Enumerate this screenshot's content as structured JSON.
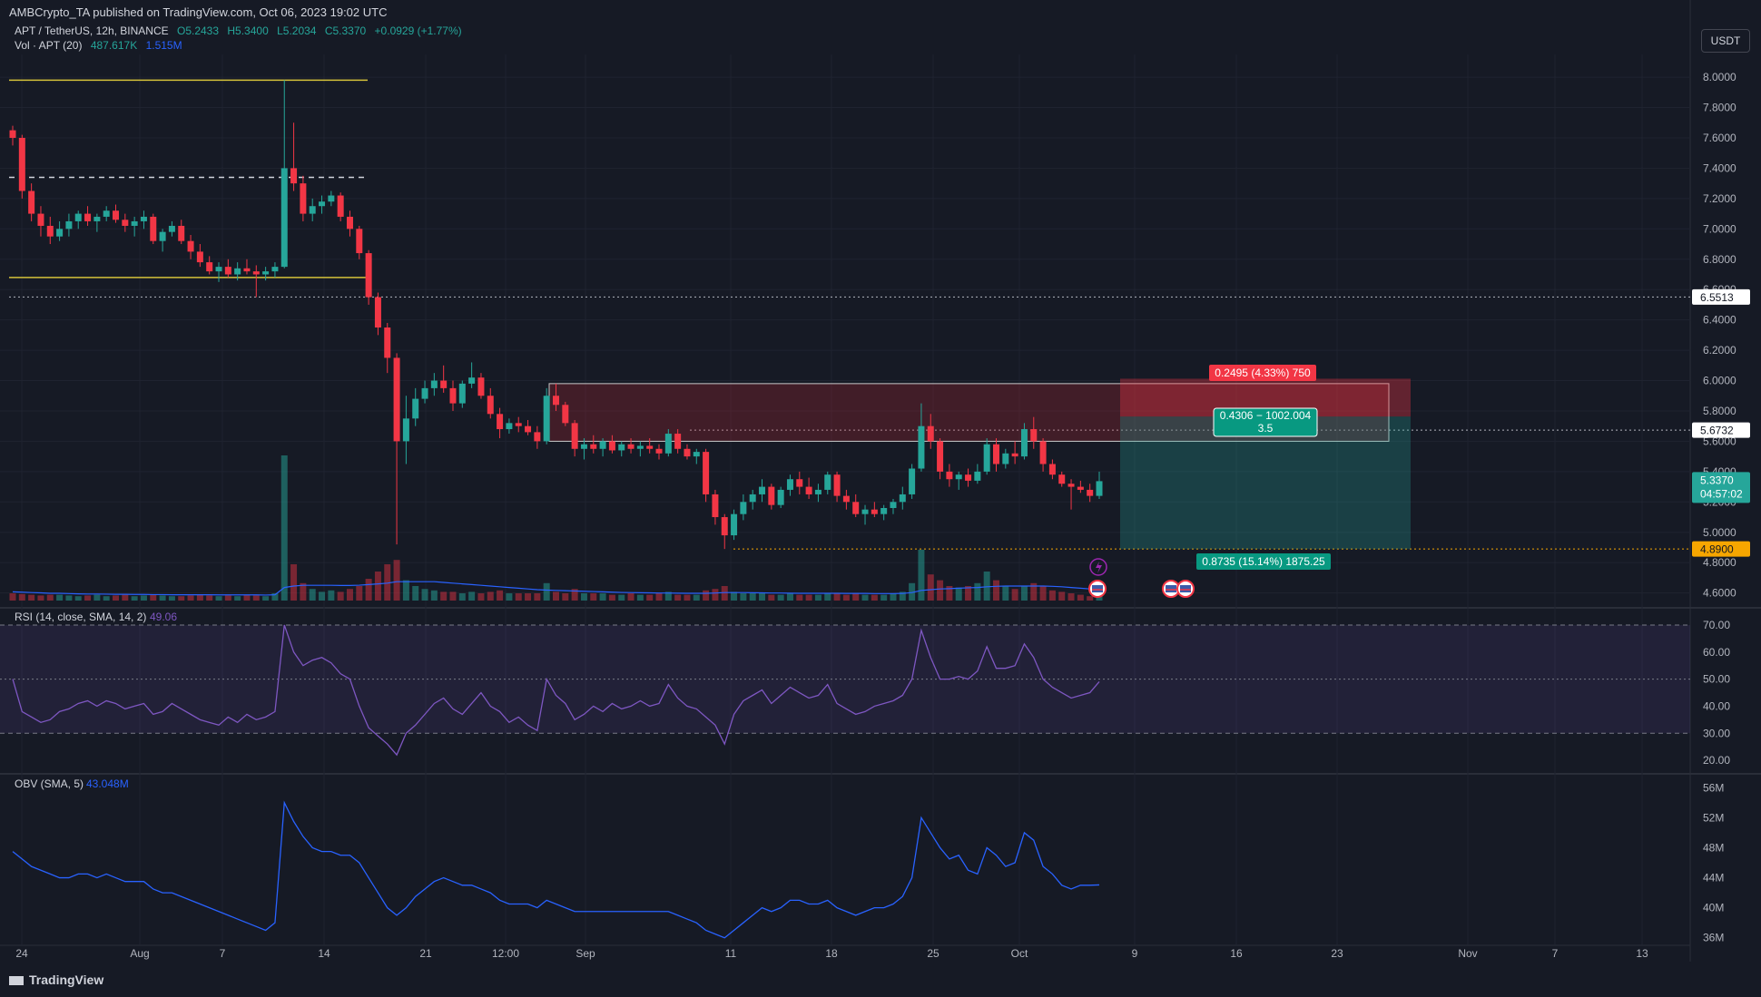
{
  "header": {
    "publisher": "AMBCrypto_TA published on TradingView.com, Oct 06, 2023 19:02 UTC",
    "symbol": "APT / TetherUS, 12h, BINANCE",
    "ohlc": {
      "o": "O5.2433",
      "h": "H5.3400",
      "l": "L5.2034",
      "c": "C5.3370",
      "chg": "+0.0929 (+1.77%)"
    },
    "vol": {
      "label": "Vol · APT (20)",
      "v1": "487.617K",
      "v2": "1.515M"
    },
    "currency_button": "USDT"
  },
  "footer": {
    "brand": "TradingView"
  },
  "colors": {
    "bg": "#161a25",
    "up": "#26a69a",
    "down": "#f23645",
    "rsi": "#7e57c2",
    "obv": "#2962ff",
    "yellow": "#d4c13a"
  },
  "chart_data": [
    {
      "type": "candlestick",
      "pair": "APT / TetherUS",
      "interval": "12h",
      "ylim": [
        4.55,
        8.15
      ],
      "price_ticks": [
        "8.0000",
        "7.8000",
        "7.6000",
        "7.4000",
        "7.2000",
        "7.0000",
        "6.8000",
        "6.6000",
        "6.4000",
        "6.2000",
        "6.0000",
        "5.8000",
        "5.6000",
        "5.4000",
        "5.2000",
        "5.0000",
        "4.8000",
        "4.6000"
      ],
      "x_ticks": [
        "24",
        "Aug",
        "7",
        "14",
        "21",
        "12:00",
        "Sep",
        "11",
        "18",
        "25",
        "Oct",
        "9",
        "16",
        "23",
        "Nov",
        "7",
        "13"
      ],
      "price_labels": [
        {
          "value": 6.5513,
          "text": "6.5513",
          "style": "white"
        },
        {
          "value": 5.6732,
          "text": "5.6732",
          "style": "white"
        },
        {
          "value": 5.337,
          "text": "5.3370",
          "sub": "04:57:02",
          "style": "green"
        },
        {
          "value": 4.89,
          "text": "4.8900",
          "style": "orange"
        }
      ],
      "levels": [
        {
          "value": 7.98,
          "style": "yellow"
        },
        {
          "value": 7.34,
          "style": "white-dashed"
        },
        {
          "value": 6.68,
          "style": "yellow"
        },
        {
          "value": 6.5513,
          "style": "white-dotted"
        },
        {
          "value": 5.6732,
          "style": "white-dotted"
        },
        {
          "value": 4.89,
          "style": "orange-dotted"
        }
      ],
      "position": {
        "entry": 5.763,
        "stop": 6.0125,
        "target": 4.8895
      },
      "position_labels": {
        "stop": "0.2495 (4.33%) 750",
        "rr_line1": "0.4306 − 1002.004",
        "rr_line2": "3.5",
        "target": "0.8735 (15.14%) 1875.25"
      },
      "candles": [
        [
          7.65,
          7.68,
          7.55,
          7.6
        ],
        [
          7.6,
          7.62,
          7.2,
          7.25
        ],
        [
          7.25,
          7.3,
          7.05,
          7.1
        ],
        [
          7.1,
          7.15,
          6.95,
          7.02
        ],
        [
          7.02,
          7.08,
          6.9,
          6.95
        ],
        [
          6.95,
          7.05,
          6.92,
          7.0
        ],
        [
          7.0,
          7.1,
          6.95,
          7.05
        ],
        [
          7.05,
          7.12,
          7.0,
          7.1
        ],
        [
          7.1,
          7.15,
          7.02,
          7.05
        ],
        [
          7.05,
          7.1,
          6.98,
          7.08
        ],
        [
          7.08,
          7.15,
          7.05,
          7.12
        ],
        [
          7.12,
          7.16,
          7.04,
          7.06
        ],
        [
          7.06,
          7.1,
          6.98,
          7.02
        ],
        [
          7.02,
          7.08,
          6.95,
          7.05
        ],
        [
          7.05,
          7.12,
          7.0,
          7.08
        ],
        [
          7.08,
          7.1,
          6.9,
          6.92
        ],
        [
          6.92,
          7.0,
          6.85,
          6.98
        ],
        [
          6.98,
          7.05,
          6.95,
          7.02
        ],
        [
          7.02,
          7.06,
          6.9,
          6.92
        ],
        [
          6.92,
          6.96,
          6.8,
          6.85
        ],
        [
          6.85,
          6.9,
          6.75,
          6.78
        ],
        [
          6.78,
          6.82,
          6.7,
          6.72
        ],
        [
          6.72,
          6.78,
          6.65,
          6.75
        ],
        [
          6.75,
          6.8,
          6.68,
          6.7
        ],
        [
          6.7,
          6.78,
          6.66,
          6.74
        ],
        [
          6.74,
          6.8,
          6.7,
          6.72
        ],
        [
          6.72,
          6.76,
          6.55,
          6.7
        ],
        [
          6.7,
          6.75,
          6.66,
          6.72
        ],
        [
          6.72,
          6.78,
          6.68,
          6.75
        ],
        [
          6.75,
          7.98,
          6.74,
          7.4
        ],
        [
          7.4,
          7.7,
          7.25,
          7.3
        ],
        [
          7.3,
          7.35,
          7.05,
          7.1
        ],
        [
          7.1,
          7.2,
          7.05,
          7.15
        ],
        [
          7.15,
          7.22,
          7.1,
          7.18
        ],
        [
          7.18,
          7.25,
          7.15,
          7.22
        ],
        [
          7.22,
          7.24,
          7.05,
          7.08
        ],
        [
          7.08,
          7.12,
          6.95,
          7.0
        ],
        [
          7.0,
          7.02,
          6.8,
          6.84
        ],
        [
          6.84,
          6.86,
          6.5,
          6.55
        ],
        [
          6.55,
          6.58,
          6.3,
          6.35
        ],
        [
          6.35,
          6.38,
          6.05,
          6.15
        ],
        [
          6.15,
          6.18,
          4.92,
          5.6
        ],
        [
          5.6,
          5.9,
          5.45,
          5.75
        ],
        [
          5.75,
          5.95,
          5.7,
          5.88
        ],
        [
          5.88,
          6.0,
          5.85,
          5.95
        ],
        [
          5.95,
          6.05,
          5.9,
          6.0
        ],
        [
          6.0,
          6.1,
          5.92,
          5.95
        ],
        [
          5.95,
          6.0,
          5.8,
          5.85
        ],
        [
          5.85,
          6.0,
          5.82,
          5.98
        ],
        [
          5.98,
          6.12,
          5.95,
          6.02
        ],
        [
          6.02,
          6.05,
          5.88,
          5.9
        ],
        [
          5.9,
          5.95,
          5.75,
          5.78
        ],
        [
          5.78,
          5.82,
          5.62,
          5.68
        ],
        [
          5.68,
          5.75,
          5.65,
          5.72
        ],
        [
          5.72,
          5.76,
          5.66,
          5.7
        ],
        [
          5.7,
          5.74,
          5.64,
          5.66
        ],
        [
          5.66,
          5.7,
          5.55,
          5.6
        ],
        [
          5.6,
          5.95,
          5.58,
          5.9
        ],
        [
          5.9,
          5.98,
          5.8,
          5.84
        ],
        [
          5.84,
          5.86,
          5.7,
          5.72
        ],
        [
          5.72,
          5.74,
          5.5,
          5.55
        ],
        [
          5.55,
          5.62,
          5.48,
          5.58
        ],
        [
          5.58,
          5.64,
          5.52,
          5.55
        ],
        [
          5.55,
          5.62,
          5.5,
          5.6
        ],
        [
          5.6,
          5.64,
          5.52,
          5.54
        ],
        [
          5.54,
          5.6,
          5.5,
          5.58
        ],
        [
          5.58,
          5.62,
          5.52,
          5.55
        ],
        [
          5.55,
          5.6,
          5.5,
          5.57
        ],
        [
          5.57,
          5.62,
          5.52,
          5.55
        ],
        [
          5.55,
          5.58,
          5.48,
          5.52
        ],
        [
          5.52,
          5.68,
          5.5,
          5.65
        ],
        [
          5.65,
          5.68,
          5.52,
          5.55
        ],
        [
          5.55,
          5.58,
          5.48,
          5.5
        ],
        [
          5.5,
          5.55,
          5.45,
          5.53
        ],
        [
          5.53,
          5.55,
          5.2,
          5.25
        ],
        [
          5.25,
          5.28,
          5.05,
          5.1
        ],
        [
          5.1,
          5.12,
          4.89,
          4.98
        ],
        [
          4.98,
          5.15,
          4.95,
          5.12
        ],
        [
          5.12,
          5.25,
          5.08,
          5.2
        ],
        [
          5.2,
          5.28,
          5.15,
          5.25
        ],
        [
          5.25,
          5.35,
          5.2,
          5.3
        ],
        [
          5.3,
          5.32,
          5.15,
          5.18
        ],
        [
          5.18,
          5.3,
          5.16,
          5.28
        ],
        [
          5.28,
          5.38,
          5.24,
          5.35
        ],
        [
          5.35,
          5.4,
          5.25,
          5.3
        ],
        [
          5.3,
          5.36,
          5.22,
          5.25
        ],
        [
          5.25,
          5.32,
          5.2,
          5.28
        ],
        [
          5.28,
          5.4,
          5.25,
          5.38
        ],
        [
          5.38,
          5.4,
          5.2,
          5.24
        ],
        [
          5.24,
          5.28,
          5.15,
          5.2
        ],
        [
          5.2,
          5.25,
          5.1,
          5.12
        ],
        [
          5.12,
          5.18,
          5.05,
          5.15
        ],
        [
          5.15,
          5.2,
          5.1,
          5.12
        ],
        [
          5.12,
          5.18,
          5.08,
          5.16
        ],
        [
          5.16,
          5.22,
          5.12,
          5.2
        ],
        [
          5.2,
          5.3,
          5.15,
          5.25
        ],
        [
          5.25,
          5.45,
          5.22,
          5.42
        ],
        [
          5.42,
          5.85,
          5.4,
          5.7
        ],
        [
          5.7,
          5.78,
          5.55,
          5.6
        ],
        [
          5.6,
          5.62,
          5.35,
          5.4
        ],
        [
          5.4,
          5.45,
          5.3,
          5.35
        ],
        [
          5.35,
          5.4,
          5.28,
          5.38
        ],
        [
          5.38,
          5.42,
          5.3,
          5.34
        ],
        [
          5.34,
          5.45,
          5.32,
          5.4
        ],
        [
          5.4,
          5.62,
          5.38,
          5.58
        ],
        [
          5.58,
          5.62,
          5.4,
          5.45
        ],
        [
          5.45,
          5.55,
          5.42,
          5.52
        ],
        [
          5.52,
          5.6,
          5.45,
          5.5
        ],
        [
          5.5,
          5.72,
          5.48,
          5.68
        ],
        [
          5.68,
          5.76,
          5.55,
          5.6
        ],
        [
          5.6,
          5.62,
          5.4,
          5.45
        ],
        [
          5.45,
          5.48,
          5.35,
          5.38
        ],
        [
          5.38,
          5.4,
          5.3,
          5.32
        ],
        [
          5.32,
          5.35,
          5.15,
          5.3
        ],
        [
          5.3,
          5.34,
          5.26,
          5.28
        ],
        [
          5.28,
          5.32,
          5.2,
          5.24
        ],
        [
          5.24,
          5.4,
          5.22,
          5.337
        ]
      ],
      "volume": [
        0.05,
        0.045,
        0.04,
        0.035,
        0.04,
        0.04,
        0.035,
        0.03,
        0.035,
        0.04,
        0.03,
        0.035,
        0.04,
        0.03,
        0.035,
        0.04,
        0.035,
        0.03,
        0.03,
        0.035,
        0.04,
        0.035,
        0.03,
        0.035,
        0.03,
        0.04,
        0.035,
        0.03,
        0.05,
        1.0,
        0.25,
        0.12,
        0.08,
        0.06,
        0.07,
        0.06,
        0.08,
        0.1,
        0.15,
        0.2,
        0.25,
        0.28,
        0.14,
        0.1,
        0.08,
        0.07,
        0.06,
        0.06,
        0.05,
        0.06,
        0.05,
        0.06,
        0.07,
        0.05,
        0.05,
        0.05,
        0.05,
        0.12,
        0.06,
        0.05,
        0.08,
        0.05,
        0.05,
        0.05,
        0.04,
        0.04,
        0.05,
        0.04,
        0.04,
        0.05,
        0.06,
        0.04,
        0.04,
        0.04,
        0.07,
        0.08,
        0.1,
        0.06,
        0.05,
        0.05,
        0.05,
        0.04,
        0.04,
        0.05,
        0.04,
        0.04,
        0.04,
        0.05,
        0.05,
        0.04,
        0.05,
        0.04,
        0.04,
        0.04,
        0.05,
        0.06,
        0.12,
        0.35,
        0.18,
        0.14,
        0.1,
        0.09,
        0.1,
        0.12,
        0.2,
        0.14,
        0.1,
        0.08,
        0.1,
        0.12,
        0.1,
        0.07,
        0.06,
        0.05,
        0.04,
        0.03,
        0.03
      ],
      "ma_volume": [
        0.06,
        0.058,
        0.055,
        0.053,
        0.05,
        0.05,
        0.048,
        0.046,
        0.045,
        0.045,
        0.044,
        0.043,
        0.043,
        0.042,
        0.042,
        0.041,
        0.041,
        0.04,
        0.04,
        0.04,
        0.04,
        0.04,
        0.039,
        0.039,
        0.039,
        0.039,
        0.039,
        0.038,
        0.04,
        0.09,
        0.1,
        0.105,
        0.105,
        0.105,
        0.105,
        0.104,
        0.104,
        0.106,
        0.11,
        0.115,
        0.12,
        0.13,
        0.13,
        0.13,
        0.13,
        0.13,
        0.125,
        0.12,
        0.115,
        0.11,
        0.105,
        0.1,
        0.095,
        0.09,
        0.085,
        0.08,
        0.075,
        0.072,
        0.07,
        0.068,
        0.066,
        0.064,
        0.062,
        0.06,
        0.058,
        0.056,
        0.055,
        0.054,
        0.053,
        0.052,
        0.052,
        0.051,
        0.05,
        0.05,
        0.05,
        0.052,
        0.055,
        0.055,
        0.055,
        0.054,
        0.053,
        0.052,
        0.052,
        0.051,
        0.05,
        0.05,
        0.05,
        0.05,
        0.05,
        0.049,
        0.049,
        0.049,
        0.048,
        0.048,
        0.048,
        0.049,
        0.055,
        0.07,
        0.075,
        0.08,
        0.082,
        0.085,
        0.088,
        0.09,
        0.095,
        0.098,
        0.1,
        0.1,
        0.1,
        0.1,
        0.1,
        0.098,
        0.095,
        0.09,
        0.085,
        0.08,
        0.075
      ]
    },
    {
      "type": "line",
      "name": "RSI",
      "label": "RSI (14, close, SMA, 14, 2)",
      "last_value": "49.06",
      "ylim": [
        16,
        72
      ],
      "ticks": [
        "70.00",
        "60.00",
        "50.00",
        "40.00",
        "30.00",
        "20.00"
      ],
      "band": [
        30,
        70
      ],
      "values": [
        50,
        38,
        36,
        34,
        35,
        38,
        39,
        41,
        42,
        40,
        42,
        41,
        39,
        40,
        41,
        37,
        38,
        41,
        39,
        37,
        35,
        34,
        33,
        36,
        34,
        37,
        35,
        36,
        38,
        70,
        60,
        55,
        57,
        58,
        56,
        52,
        50,
        40,
        32,
        29,
        26,
        22,
        30,
        33,
        37,
        41,
        43,
        39,
        37,
        41,
        45,
        40,
        38,
        34,
        36,
        33,
        31,
        50,
        44,
        41,
        35,
        37,
        40,
        38,
        41,
        39,
        40,
        42,
        40,
        41,
        48,
        43,
        40,
        39,
        36,
        33,
        26,
        37,
        42,
        44,
        46,
        41,
        44,
        47,
        45,
        43,
        44,
        48,
        41,
        39,
        37,
        38,
        40,
        41,
        42,
        44,
        50,
        68,
        58,
        50,
        50,
        51,
        50,
        53,
        62,
        54,
        54,
        55,
        63,
        58,
        50,
        47,
        45,
        43,
        44,
        45,
        49.06
      ]
    },
    {
      "type": "line",
      "name": "OBV",
      "label": "OBV (SMA, 5)",
      "last_value": "43.048M",
      "ylim": [
        35,
        57
      ],
      "ticks": [
        "56M",
        "52M",
        "48M",
        "44M",
        "40M",
        "36M"
      ],
      "values": [
        47.5,
        46.5,
        45.5,
        45,
        44.5,
        44,
        44,
        44.5,
        44.5,
        44,
        44.5,
        44,
        43.5,
        43.5,
        43.5,
        42.5,
        42,
        42,
        41.5,
        41,
        40.5,
        40,
        39.5,
        39,
        38.5,
        38,
        37.5,
        37,
        38,
        54,
        51.5,
        49.5,
        48,
        47.5,
        47.5,
        47,
        47,
        46,
        44,
        42,
        40,
        39,
        40,
        41.5,
        42.5,
        43.5,
        44,
        43.5,
        43,
        43,
        42.5,
        42,
        41,
        40.5,
        40.5,
        40.5,
        40,
        41,
        40.5,
        40,
        39.5,
        39.5,
        39.5,
        39.5,
        39.5,
        39.5,
        39.5,
        39.5,
        39.5,
        39.5,
        39.5,
        39,
        38.5,
        38,
        37,
        36.5,
        36,
        37,
        38,
        39,
        40,
        39.5,
        40,
        41,
        41,
        40.5,
        40.5,
        41,
        40,
        39.5,
        39,
        39.5,
        40,
        40,
        40.5,
        41.5,
        44,
        52,
        50,
        48,
        46.5,
        47,
        45,
        44.5,
        48,
        47,
        45.5,
        46,
        50,
        49,
        45.5,
        44.5,
        43,
        42.5,
        43,
        43,
        43.048
      ]
    }
  ]
}
